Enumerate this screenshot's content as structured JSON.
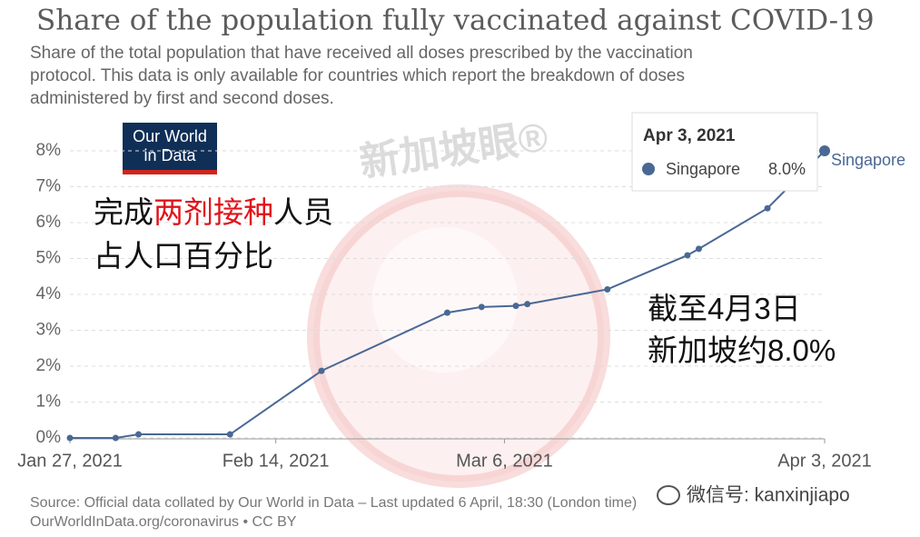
{
  "chart_data": {
    "type": "line",
    "title": "Share of the population fully vaccinated against COVID-19",
    "subtitle": [
      "Share of the total population that have received all doses prescribed by the vaccination",
      "protocol. This data is only available for countries which report the breakdown of doses",
      "administered by first and second doses."
    ],
    "logo": [
      "Our World",
      "in Data"
    ],
    "x": [
      "2021-01-27",
      "2021-01-31",
      "2021-02-02",
      "2021-02-10",
      "2021-02-18",
      "2021-03-01",
      "2021-03-04",
      "2021-03-07",
      "2021-03-08",
      "2021-03-15",
      "2021-03-22",
      "2021-03-23",
      "2021-03-29",
      "2021-04-03"
    ],
    "series": [
      {
        "name": "Singapore",
        "color": "#4a6894",
        "values": [
          0.0,
          0.0,
          0.1,
          0.1,
          1.87,
          3.49,
          3.65,
          3.68,
          3.73,
          4.14,
          5.09,
          5.27,
          6.4,
          8.0
        ]
      }
    ],
    "xlim": [
      "2021-01-27",
      "2021-04-03"
    ],
    "xticks": [
      {
        "value": "2021-01-27",
        "label": "Jan 27, 2021"
      },
      {
        "value": "2021-02-14",
        "label": "Feb 14, 2021"
      },
      {
        "value": "2021-03-06",
        "label": "Mar 6, 2021"
      },
      {
        "value": "2021-04-03",
        "label": "Apr 3, 2021"
      }
    ],
    "ylim": [
      0,
      8
    ],
    "yticks": [
      {
        "value": 0,
        "label": "0%"
      },
      {
        "value": 1,
        "label": "1%"
      },
      {
        "value": 2,
        "label": "2%"
      },
      {
        "value": 3,
        "label": "3%"
      },
      {
        "value": 4,
        "label": "4%"
      },
      {
        "value": 5,
        "label": "5%"
      },
      {
        "value": 6,
        "label": "6%"
      },
      {
        "value": 7,
        "label": "7%"
      },
      {
        "value": 8,
        "label": "8%"
      }
    ],
    "grid": true,
    "tooltip": {
      "title": "Apr 3, 2021",
      "label": "Singapore",
      "value_label": "8.0%"
    },
    "annotations": [
      [
        "完成",
        "两剂接种",
        "人员"
      ],
      [
        "占人口百分比"
      ],
      [
        "截至4月3日"
      ],
      [
        "新加坡约8.0%"
      ]
    ],
    "source": [
      "Source: Official data collated by Our World in Data – Last updated 6 April, 18:30 (London time)",
      "OurWorldInData.org/coronavirus • CC BY"
    ],
    "watermark": {
      "text": "新加坡眼®",
      "handle": "微信号: kanxinjiapo"
    }
  }
}
